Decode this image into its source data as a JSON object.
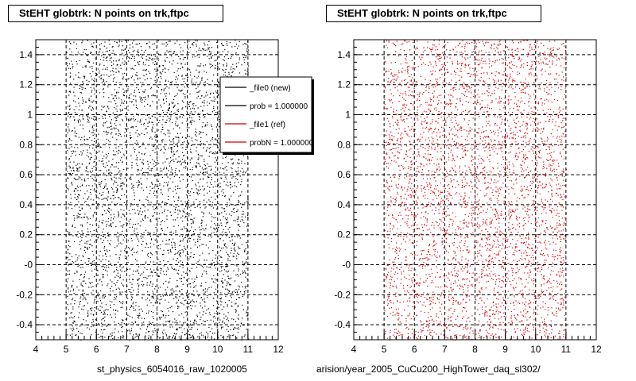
{
  "chart_data": [
    {
      "type": "scatter",
      "title": "StEHT globtrk: N points on trk,ftpc",
      "xlabel": "st_physics_6054016_raw_1020005",
      "ylabel": "",
      "xlim": [
        4,
        12
      ],
      "ylim": [
        -0.5,
        1.5
      ],
      "x_ticks": [
        "4",
        "5",
        "6",
        "7",
        "8",
        "9",
        "10",
        "11",
        "12"
      ],
      "y_ticks": [
        "-0.4",
        "-0.2",
        "-0",
        "0.2",
        "0.4",
        "0.6",
        "0.8",
        "1",
        "1.2",
        "1.4"
      ],
      "grid": true,
      "marker_color": "#000000",
      "series": [
        {
          "name": "_file0 (new)",
          "x_range": [
            5,
            11
          ],
          "y_range": [
            -0.5,
            1.5
          ],
          "distribution": "uniform"
        }
      ],
      "legend": {
        "placement": "top-right",
        "entries": [
          {
            "label": "_file0 (new)",
            "color": "#000000"
          },
          {
            "label": "prob = 1.000000",
            "color": "#000000"
          },
          {
            "label": "_file1 (ref)",
            "color": "#cc0000"
          },
          {
            "label": "probN = 1.000000",
            "color": "#cc0000"
          }
        ]
      }
    },
    {
      "type": "scatter",
      "title": "StEHT globtrk: N points on trk,ftpc",
      "xlabel": "...arision/year_2005_CuCu200_HighTower_daq_sl302/",
      "ylabel": "",
      "xlim": [
        4,
        12
      ],
      "ylim": [
        -0.5,
        1.5
      ],
      "x_ticks": [
        "4",
        "5",
        "6",
        "7",
        "8",
        "9",
        "10",
        "11",
        "12"
      ],
      "y_ticks": [
        "-0.4",
        "-0.2",
        "-0",
        "0.2",
        "0.4",
        "0.6",
        "0.8",
        "1",
        "1.2",
        "1.4"
      ],
      "grid": true,
      "marker_color": "#dd0000",
      "series": [
        {
          "name": "_file1 (ref)",
          "x_range": [
            5,
            11
          ],
          "y_range": [
            -0.5,
            1.5
          ],
          "distribution": "uniform"
        }
      ]
    }
  ],
  "titles": {
    "left": "StEHT globtrk: N points on trk,ftpc",
    "right": "StEHT globtrk: N points on trk,ftpc"
  },
  "captions": {
    "left": "st_physics_6054016_raw_1020005",
    "right": "arision/year_2005_CuCu200_HighTower_daq_sl302/"
  },
  "footer": "... ..."
}
